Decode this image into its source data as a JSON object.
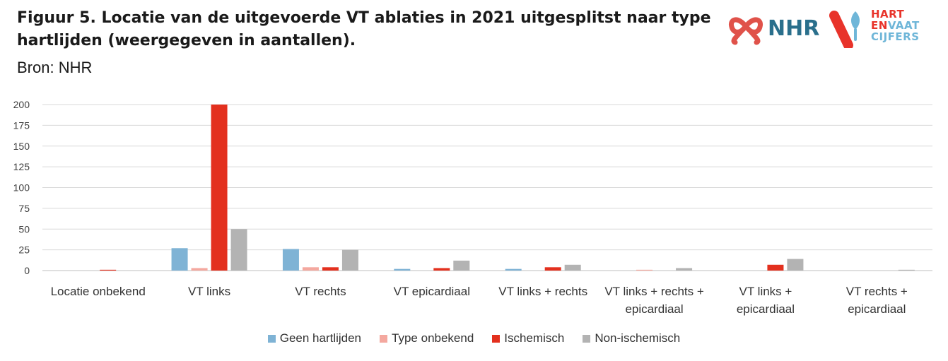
{
  "header": {
    "title": "Figuur 5. Locatie van de uitgevoerde VT ablaties in 2021 uitgesplitst naar type hartlijden (weergegeven in aantallen).",
    "source": "Bron: NHR"
  },
  "logos": {
    "nhr_text": "NHR",
    "hvc_line1": "HART",
    "hvc_line2_a": "EN",
    "hvc_line2_b": "VAAT",
    "hvc_line3": "CIJFERS"
  },
  "colors": {
    "geen_hartlijden": "#7fb3d5",
    "type_onbekend": "#f4a89f",
    "ischemisch": "#e3301e",
    "non_ischemisch": "#b3b3b3",
    "nhr_red": "#e0524a",
    "nhr_blue": "#2a6f8c",
    "hvc_red": "#e8332a",
    "hvc_blue": "#6fb6d8"
  },
  "chart_data": {
    "type": "bar",
    "title": "",
    "xlabel": "",
    "ylabel": "",
    "ylim": [
      0,
      200
    ],
    "yticks": [
      0,
      25,
      50,
      75,
      100,
      125,
      150,
      175,
      200
    ],
    "grid": true,
    "legend_position": "bottom",
    "categories": [
      [
        "Locatie onbekend"
      ],
      [
        "VT links"
      ],
      [
        "VT rechts"
      ],
      [
        "VT epicardiaal"
      ],
      [
        "VT links + rechts"
      ],
      [
        "VT links + rechts +",
        "epicardiaal"
      ],
      [
        "VT links +",
        "epicardiaal"
      ],
      [
        "VT rechts +",
        "epicardiaal"
      ]
    ],
    "series": [
      {
        "name": "Geen hartlijden",
        "color": "#7fb3d5",
        "values": [
          0,
          27,
          26,
          2,
          2,
          0,
          0,
          0
        ]
      },
      {
        "name": "Type onbekend",
        "color": "#f4a89f",
        "values": [
          0,
          3,
          4,
          0,
          0,
          1,
          0,
          0
        ]
      },
      {
        "name": "Ischemisch",
        "color": "#e3301e",
        "values": [
          1,
          200,
          4,
          3,
          4,
          0,
          7,
          0
        ]
      },
      {
        "name": "Non-ischemisch",
        "color": "#b3b3b3",
        "values": [
          0,
          50,
          25,
          12,
          7,
          3,
          14,
          1
        ]
      }
    ]
  }
}
